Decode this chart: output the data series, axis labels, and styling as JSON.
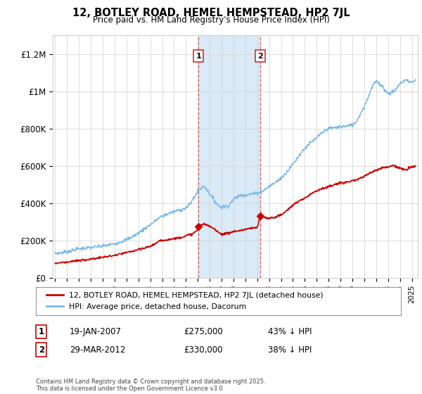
{
  "title": "12, BOTLEY ROAD, HEMEL HEMPSTEAD, HP2 7JL",
  "subtitle": "Price paid vs. HM Land Registry's House Price Index (HPI)",
  "ylabel_ticks": [
    "£0",
    "£200K",
    "£400K",
    "£600K",
    "£800K",
    "£1M",
    "£1.2M"
  ],
  "ytick_values": [
    0,
    200000,
    400000,
    600000,
    800000,
    1000000,
    1200000
  ],
  "ylim": [
    0,
    1300000
  ],
  "xlim_start": 1994.8,
  "xlim_end": 2025.5,
  "hpi_color": "#7ab8e8",
  "price_color": "#cc0000",
  "sale1_date": 2007.05,
  "sale1_price": 275000,
  "sale1_label": "1",
  "sale2_date": 2012.25,
  "sale2_price": 330000,
  "sale2_label": "2",
  "shade_color": "#daeaf7",
  "legend_line1": "12, BOTLEY ROAD, HEMEL HEMPSTEAD, HP2 7JL (detached house)",
  "legend_line2": "HPI: Average price, detached house, Dacorum",
  "table_row1_num": "1",
  "table_row1_date": "19-JAN-2007",
  "table_row1_price": "£275,000",
  "table_row1_hpi": "43% ↓ HPI",
  "table_row2_num": "2",
  "table_row2_date": "29-MAR-2012",
  "table_row2_price": "£330,000",
  "table_row2_hpi": "38% ↓ HPI",
  "footer": "Contains HM Land Registry data © Crown copyright and database right 2025.\nThis data is licensed under the Open Government Licence v3.0.",
  "background_color": "#ffffff",
  "grid_color": "#d0d0d0"
}
